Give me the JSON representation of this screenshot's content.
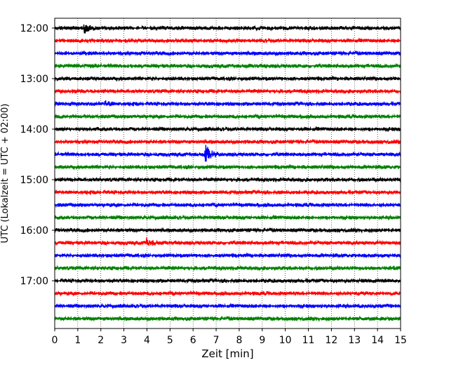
{
  "chart_data": {
    "type": "line",
    "title": "",
    "xlabel": "Zeit  [min]",
    "ylabel": "UTC (Lokalzeit = UTC + 02:00)",
    "xlim": [
      0,
      15
    ],
    "x_ticks": [
      "0",
      "1",
      "2",
      "3",
      "4",
      "5",
      "6",
      "7",
      "8",
      "9",
      "10",
      "11",
      "12",
      "13",
      "14",
      "15"
    ],
    "y_ticks": [
      "12:00",
      "13:00",
      "14:00",
      "15:00",
      "16:00",
      "17:00"
    ],
    "grid": "vertical dotted",
    "row_interval_min": 15,
    "row_colors": [
      "#000000",
      "#ff0000",
      "#0000ff",
      "#008000"
    ],
    "rows": [
      {
        "start": "12:00",
        "color": "#000000",
        "events": [
          {
            "t": 1.3,
            "amp": 1.0
          }
        ]
      },
      {
        "start": "12:15",
        "color": "#ff0000",
        "events": []
      },
      {
        "start": "12:30",
        "color": "#0000ff",
        "events": []
      },
      {
        "start": "12:45",
        "color": "#008000",
        "events": []
      },
      {
        "start": "13:00",
        "color": "#000000",
        "events": []
      },
      {
        "start": "13:15",
        "color": "#ff0000",
        "events": []
      },
      {
        "start": "13:30",
        "color": "#0000ff",
        "events": [
          {
            "t": 2.2,
            "amp": 0.5
          }
        ]
      },
      {
        "start": "13:45",
        "color": "#008000",
        "events": []
      },
      {
        "start": "14:00",
        "color": "#000000",
        "events": []
      },
      {
        "start": "14:15",
        "color": "#ff0000",
        "events": []
      },
      {
        "start": "14:30",
        "color": "#0000ff",
        "events": [
          {
            "t": 6.55,
            "amp": 2.0
          }
        ]
      },
      {
        "start": "14:45",
        "color": "#008000",
        "events": []
      },
      {
        "start": "15:00",
        "color": "#000000",
        "events": []
      },
      {
        "start": "15:15",
        "color": "#ff0000",
        "events": []
      },
      {
        "start": "15:30",
        "color": "#0000ff",
        "events": []
      },
      {
        "start": "15:45",
        "color": "#008000",
        "events": []
      },
      {
        "start": "16:00",
        "color": "#000000",
        "events": []
      },
      {
        "start": "16:15",
        "color": "#ff0000",
        "events": [
          {
            "t": 4.0,
            "amp": 1.0
          }
        ]
      },
      {
        "start": "16:30",
        "color": "#0000ff",
        "events": []
      },
      {
        "start": "16:45",
        "color": "#008000",
        "events": []
      },
      {
        "start": "17:00",
        "color": "#000000",
        "events": []
      },
      {
        "start": "17:15",
        "color": "#ff0000",
        "events": []
      },
      {
        "start": "17:30",
        "color": "#0000ff",
        "events": []
      },
      {
        "start": "17:45",
        "color": "#008000",
        "events": []
      }
    ]
  }
}
